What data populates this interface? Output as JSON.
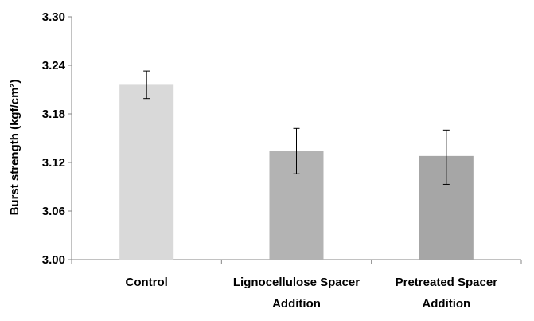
{
  "chart_data": {
    "type": "bar",
    "categories": [
      [
        "Control"
      ],
      [
        "Lignocellulose Spacer",
        "Addition"
      ],
      [
        "Pretreated Spacer",
        "Addition"
      ]
    ],
    "values": [
      3.216,
      3.134,
      3.128
    ],
    "errors": [
      [
        3.199,
        3.233
      ],
      [
        3.106,
        3.162
      ],
      [
        3.093,
        3.16
      ]
    ],
    "colors": [
      "#d9d9d9",
      "#b3b3b3",
      "#a6a6a6"
    ],
    "ylabel": "Burst strength (kgf/cm²)",
    "ylim": [
      3.0,
      3.3
    ],
    "yticks": [
      "3.00",
      "3.06",
      "3.12",
      "3.18",
      "3.24",
      "3.30"
    ],
    "grid": false
  }
}
